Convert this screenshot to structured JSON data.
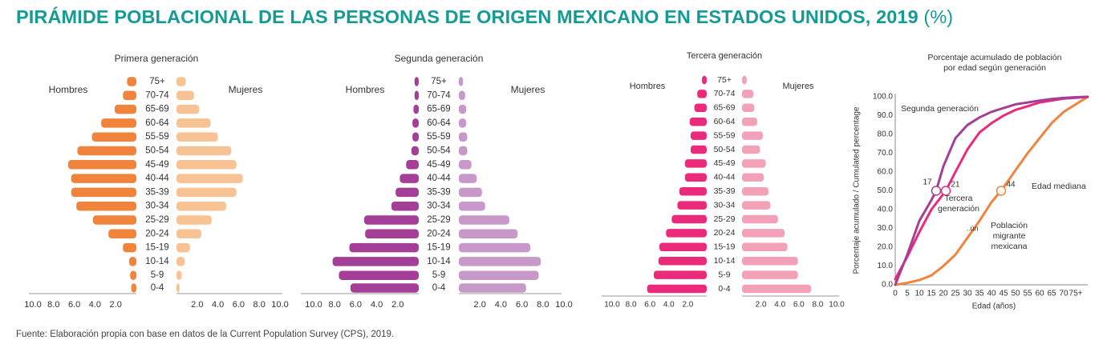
{
  "title": "PIRÁMIDE POBLACIONAL DE LAS PERSONAS DE ORIGEN MEXICANO EN ESTADOS UNIDOS, 2019",
  "title_unit": "(%)",
  "source": "Fuente: Elaboración propia con base en datos de la Current Population Survey (CPS), 2019.",
  "colors": {
    "title": "#149b94",
    "gen1_men": "#f0843c",
    "gen1_women": "#f8c394",
    "gen2_men": "#a33f96",
    "gen2_women": "#c898c8",
    "gen3_men": "#ec2a7c",
    "gen3_women": "#f3a1b8",
    "migrant_line": "#f0843c"
  },
  "chart_data": [
    {
      "type": "bar",
      "subtype": "population-pyramid",
      "title": "Primera generación",
      "left_label": "Hombres",
      "right_label": "Mujeres",
      "categories": [
        "75+",
        "70-74",
        "65-69",
        "60-64",
        "55-59",
        "50-54",
        "45-49",
        "40-44",
        "35-39",
        "30-34",
        "25-29",
        "20-24",
        "15-19",
        "10-14",
        "5-9",
        "0-4"
      ],
      "series": [
        {
          "name": "Hombres",
          "values": [
            0.9,
            1.3,
            2.1,
            3.4,
            4.3,
            5.7,
            6.6,
            6.3,
            6.3,
            5.8,
            4.2,
            2.7,
            1.3,
            0.7,
            0.6,
            0.5
          ]
        },
        {
          "name": "Mujeres",
          "values": [
            0.9,
            1.7,
            2.2,
            3.3,
            4.0,
            5.3,
            5.8,
            6.4,
            5.8,
            4.8,
            3.4,
            2.4,
            1.3,
            0.8,
            0.5,
            0.3
          ]
        }
      ],
      "left_ticks": [
        "10.0",
        "8.0",
        "6.0",
        "4.0",
        "2.0"
      ],
      "right_ticks": [
        "2.0",
        "4.0",
        "6.0",
        "8.0",
        "10.0"
      ],
      "xlim": [
        0,
        10
      ]
    },
    {
      "type": "bar",
      "subtype": "population-pyramid",
      "title": "Segunda generación",
      "left_label": "Hombres",
      "right_label": "Mujeres",
      "categories": [
        "75+",
        "70-74",
        "65-69",
        "60-64",
        "55-59",
        "50-54",
        "45-49",
        "40-44",
        "35-39",
        "30-34",
        "25-29",
        "20-24",
        "15-19",
        "10-14",
        "5-9",
        "0-4"
      ],
      "series": [
        {
          "name": "Hombres",
          "values": [
            0.4,
            0.4,
            0.5,
            0.6,
            0.6,
            0.7,
            1.2,
            1.8,
            2.2,
            2.6,
            5.2,
            5.1,
            6.6,
            8.2,
            7.6,
            6.5
          ]
        },
        {
          "name": "Mujeres",
          "values": [
            0.4,
            0.6,
            0.7,
            0.7,
            0.8,
            0.8,
            1.2,
            1.7,
            2.2,
            2.5,
            4.8,
            5.6,
            6.8,
            7.8,
            7.6,
            6.4
          ]
        }
      ],
      "left_ticks": [
        "10.0",
        "8.0",
        "6.0",
        "4.0",
        "2.0"
      ],
      "right_ticks": [
        "2.0",
        "4.0",
        "6.0",
        "8.0",
        "10.0"
      ],
      "xlim": [
        0,
        10
      ]
    },
    {
      "type": "bar",
      "subtype": "population-pyramid",
      "title": "Tercera generación",
      "left_label": "Hombres",
      "right_label": "Mujeres",
      "categories": [
        "75+",
        "70-74",
        "65-69",
        "60-64",
        "55-59",
        "50-54",
        "45-49",
        "40-44",
        "35-39",
        "30-34",
        "25-29",
        "20-24",
        "15-19",
        "10-14",
        "5-9",
        "0-4"
      ],
      "series": [
        {
          "name": "Hombres",
          "values": [
            0.5,
            1.0,
            1.3,
            1.8,
            1.7,
            1.7,
            2.3,
            2.3,
            2.9,
            3.1,
            3.7,
            4.3,
            5.0,
            5.1,
            5.6,
            6.3
          ]
        },
        {
          "name": "Mujeres",
          "values": [
            0.5,
            1.2,
            1.3,
            1.6,
            2.2,
            1.9,
            2.5,
            2.3,
            2.8,
            3.0,
            3.8,
            4.5,
            4.8,
            5.9,
            5.9,
            7.3
          ]
        }
      ],
      "left_ticks": [
        "10.0",
        "8.0",
        "6.0",
        "4.0",
        "2.0"
      ],
      "right_ticks": [
        "2.0",
        "4.0",
        "6.0",
        "8.0",
        "10.0"
      ],
      "xlim": [
        0,
        10
      ]
    },
    {
      "type": "line",
      "title": "Porcentaje acumulado de población por edad según generación",
      "title_lines": [
        "Porcentaje acumulado de población",
        "por edad según generación"
      ],
      "xlabel": "Edad (años)",
      "ylabel": "Porcentaje acumulado / Cumulated percentage",
      "xlim": [
        0,
        80
      ],
      "ylim": [
        0,
        100
      ],
      "x_ticks": [
        "0",
        "5",
        "10",
        "15",
        "20",
        "25",
        "30",
        "35",
        "40",
        "45",
        "50",
        "55",
        "60",
        "65",
        "70",
        "75+"
      ],
      "y_ticks": [
        "0.0",
        "10.0",
        "20.0",
        "30.0",
        "40.0",
        "50.0",
        "60.0",
        "70.0",
        "80.0",
        "90.0",
        "100.0"
      ],
      "series": [
        {
          "name": "Segunda generación",
          "color": "#a33f96",
          "x": [
            0,
            5,
            10,
            15,
            17,
            20,
            25,
            30,
            35,
            40,
            45,
            50,
            55,
            60,
            65,
            70,
            75,
            80
          ],
          "y": [
            0,
            16,
            34,
            45,
            50,
            63,
            78,
            85,
            89,
            92,
            94,
            96,
            97,
            98,
            98.8,
            99.4,
            99.8,
            100
          ]
        },
        {
          "name": "Tercera generación",
          "color": "#ec2a7c",
          "x": [
            0,
            5,
            10,
            15,
            21,
            25,
            30,
            35,
            40,
            45,
            50,
            55,
            60,
            65,
            70,
            75,
            80
          ],
          "y": [
            3,
            15,
            28,
            40,
            50,
            60,
            72,
            81,
            86,
            90,
            93,
            95,
            97,
            98,
            99,
            99.5,
            100
          ]
        },
        {
          "name": "Población migrante mexicana",
          "color": "#f0843c",
          "x": [
            0,
            5,
            10,
            15,
            20,
            25,
            30,
            35,
            40,
            44,
            50,
            55,
            60,
            65,
            70,
            75,
            80
          ],
          "y": [
            0,
            1,
            2.5,
            5,
            10,
            16,
            25,
            34,
            44,
            50,
            61,
            70,
            78,
            86,
            92,
            96,
            100
          ]
        }
      ],
      "medians": [
        {
          "series": "Segunda generación",
          "x": 17,
          "y": 50,
          "label": "17"
        },
        {
          "series": "Tercera generación",
          "x": 21,
          "y": 50,
          "label": "21"
        },
        {
          "series": "Población migrante mexicana",
          "x": 44,
          "y": 50,
          "label": "44"
        }
      ],
      "annotations": {
        "segunda": "Segunda generación",
        "tercera": [
          "Tercera",
          "generación"
        ],
        "migrante": [
          "Población",
          "migrante",
          "mexicana"
        ],
        "mediana": "Edad mediana",
        "stray": "..ún"
      }
    }
  ]
}
